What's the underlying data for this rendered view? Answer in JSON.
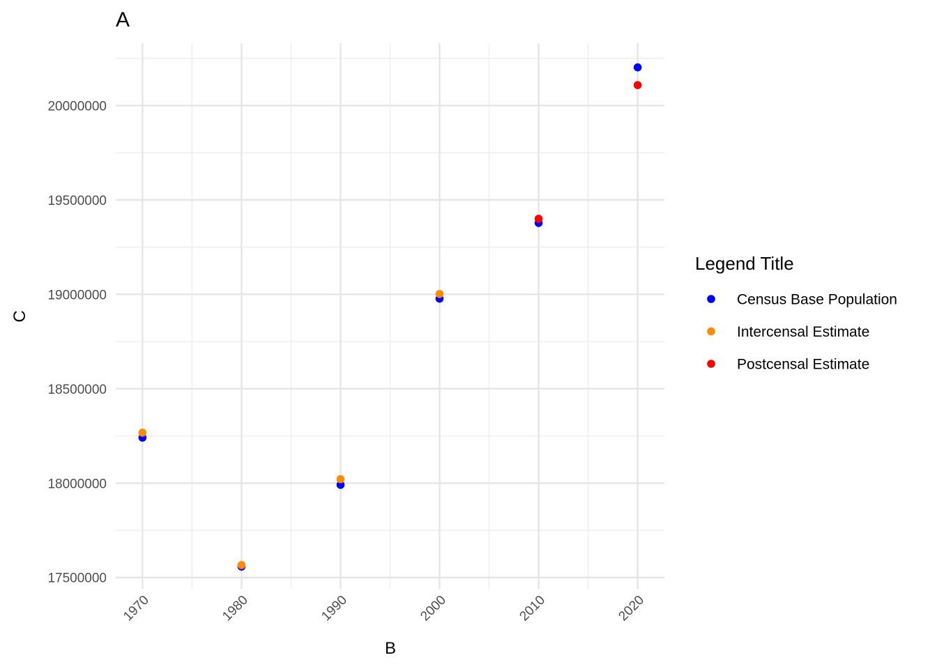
{
  "chart_data": {
    "type": "scatter",
    "title": "A",
    "xlabel": "B",
    "ylabel": "C",
    "xlim": [
      1967.3,
      2022.7
    ],
    "ylim": [
      17440000,
      20330000
    ],
    "x_ticks": [
      1970,
      1980,
      1990,
      2000,
      2010,
      2020
    ],
    "x_tick_labels": [
      "1970",
      "1980",
      "1990",
      "2000",
      "2010",
      "2020"
    ],
    "y_ticks": [
      17500000,
      18000000,
      18500000,
      19000000,
      19500000,
      20000000
    ],
    "y_tick_labels": [
      "17500000",
      "18000000",
      "18500000",
      "19000000",
      "19500000",
      "20000000"
    ],
    "grid": true,
    "legend": {
      "title": "Legend Title",
      "position": "right"
    },
    "series": [
      {
        "name": "Census Base Population",
        "color": "#0000ff",
        "points": [
          {
            "x": 1970,
            "y": 18241000
          },
          {
            "x": 1980,
            "y": 17558000
          },
          {
            "x": 1990,
            "y": 17991000
          },
          {
            "x": 2000,
            "y": 18977000
          },
          {
            "x": 2010,
            "y": 19378000
          },
          {
            "x": 2020,
            "y": 20202000
          }
        ]
      },
      {
        "name": "Intercensal Estimate",
        "color": "#ff8c00",
        "points": [
          {
            "x": 1970,
            "y": 18267000
          },
          {
            "x": 1980,
            "y": 17566000
          },
          {
            "x": 1990,
            "y": 18021000
          },
          {
            "x": 2000,
            "y": 19002000
          }
        ]
      },
      {
        "name": "Postcensal Estimate",
        "color": "#ff0000",
        "points": [
          {
            "x": 2010,
            "y": 19400000
          },
          {
            "x": 2020,
            "y": 20108000
          }
        ]
      }
    ]
  }
}
